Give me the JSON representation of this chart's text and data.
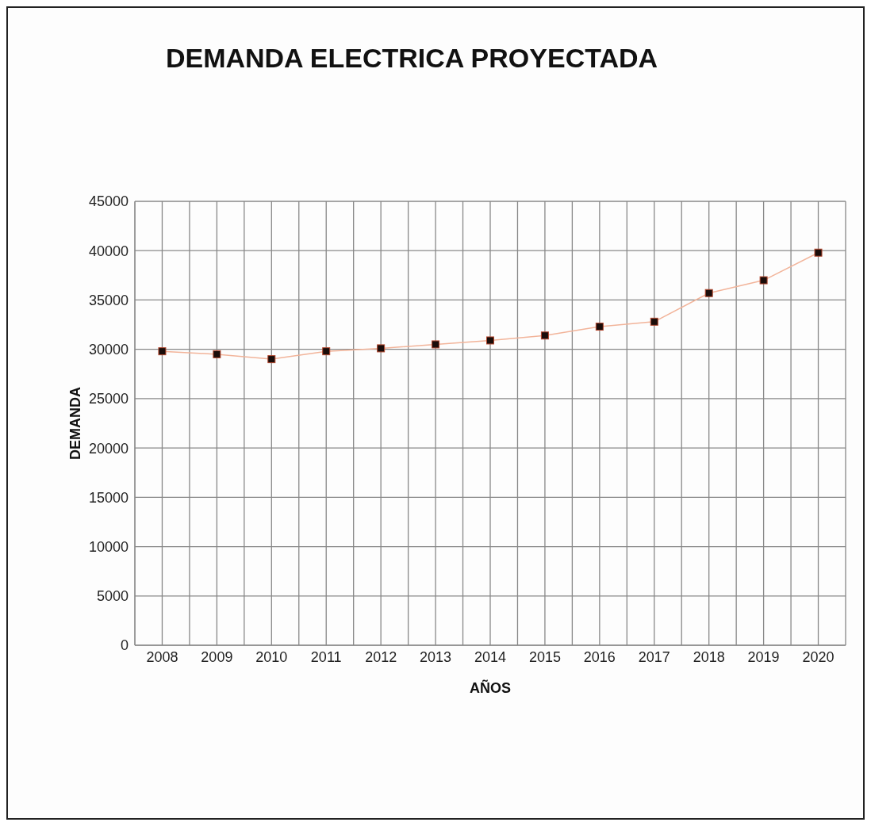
{
  "chart_data": {
    "type": "line",
    "title": "DEMANDA ELECTRICA PROYECTADA",
    "xlabel": "AÑOS",
    "ylabel": "DEMANDA",
    "categories": [
      "2008",
      "2009",
      "2010",
      "2011",
      "2012",
      "2013",
      "2014",
      "2015",
      "2016",
      "2017",
      "2018",
      "2019",
      "2020"
    ],
    "series": [
      {
        "color": "#f2b49a",
        "values": [
          29800,
          29500,
          29000,
          29800,
          30100,
          30500,
          30900,
          31400,
          32300,
          32800,
          35700,
          37000,
          39800
        ]
      }
    ],
    "ylim": [
      0,
      45000
    ],
    "yticks": [
      0,
      5000,
      10000,
      15000,
      20000,
      25000,
      30000,
      35000,
      40000,
      45000
    ],
    "grid": true,
    "marker": "square",
    "line_style": "solid"
  }
}
